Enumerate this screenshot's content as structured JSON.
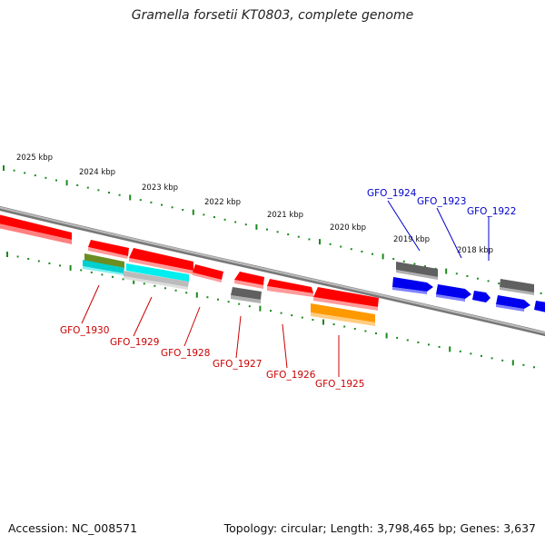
{
  "title": "Gramella forsetii KT0803, complete genome",
  "accession": "Accession: NC_008571",
  "summary": "Topology: circular; Length: 3,798,465 bp; Genes: 3,637",
  "colors": {
    "backbone": "#8a8a8a",
    "ticks": "#1a8a1a",
    "forward_label": "#0000cc",
    "reverse_label": "#cc0000",
    "red_gene": "#ff0000",
    "blue_gene": "#0000ee",
    "gray_gene": "#707070",
    "cyan_gene": "#00eeee",
    "orange_gene": "#ff9900",
    "olive_gene": "#6b8e23"
  },
  "kbp_labels": [
    "2025 kbp",
    "2024 kbp",
    "2023 kbp",
    "2022 kbp",
    "2021 kbp",
    "2020 kbp",
    "2019 kbp",
    "2018 kbp"
  ],
  "forward_genes": [
    "GFO_1924",
    "GFO_1923",
    "GFO_1922"
  ],
  "reverse_genes": [
    "GFO_1930",
    "GFO_1929",
    "GFO_1928",
    "GFO_1927",
    "GFO_1926",
    "GFO_1925"
  ]
}
